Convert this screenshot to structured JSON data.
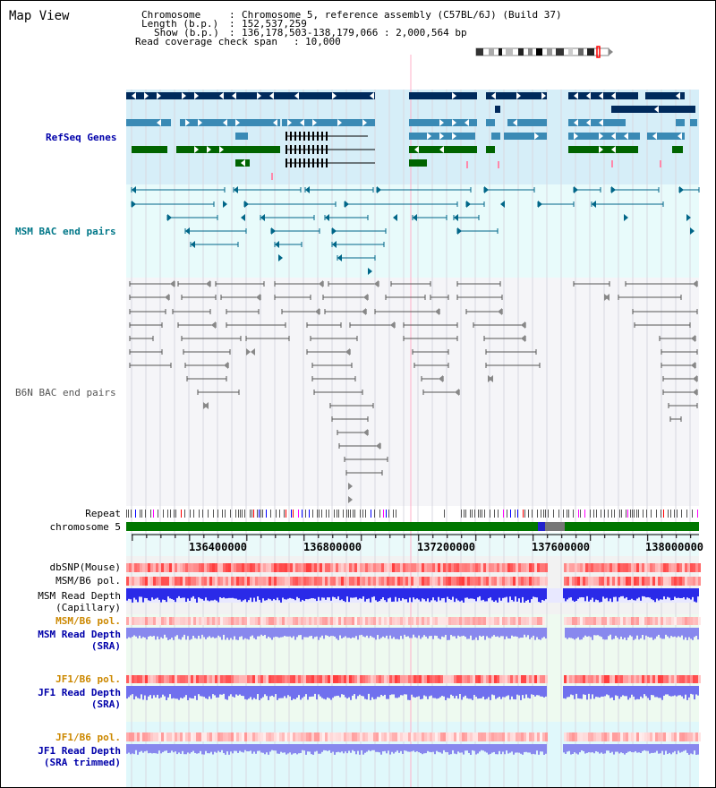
{
  "page": {
    "title": "Map View"
  },
  "header": {
    "rows": [
      {
        "key": "Chromosome",
        "value": "Chromosome 5, reference assembly (C57BL/6J) (Build 37)"
      },
      {
        "key": "Length (b.p.)",
        "value": "152,537,259"
      },
      {
        "key": "Show (b.p.)",
        "value": "136,178,503-138,179,066 : 2,000,564 bp"
      },
      {
        "key": "Read coverage check span",
        "value": "10,000"
      }
    ]
  },
  "tracks": {
    "refseq_label": "RefSeq Genes",
    "msm_bac_label": "MSM BAC end pairs",
    "b6n_bac_label": "B6N BAC end pairs",
    "repeat_label": "Repeat",
    "chromosome_label": "chromosome 5"
  },
  "axis": {
    "ticks": [
      "136400000",
      "136800000",
      "137200000",
      "137600000",
      "138000000"
    ],
    "range_start": 136178503,
    "range_end": 138179066
  },
  "data_tracks": [
    {
      "lines": [
        "dbSNP(Mouse)"
      ],
      "color": "#000000"
    },
    {
      "lines": [
        "MSM/B6 pol."
      ],
      "color": "#000000"
    },
    {
      "lines": [
        "MSM Read Depth",
        "(Capillary)"
      ],
      "color": "#000000"
    },
    {
      "lines": [
        "MSM/B6 pol."
      ],
      "color": "#cc8800"
    },
    {
      "lines": [
        "MSM Read Depth",
        "(SRA)"
      ],
      "color": "#000088"
    },
    {
      "lines": [
        "JF1/B6 pol."
      ],
      "color": "#cc8800"
    },
    {
      "lines": [
        "JF1 Read Depth",
        "(SRA)"
      ],
      "color": "#000088"
    },
    {
      "lines": [
        "JF1/B6 pol."
      ],
      "color": "#cc8800"
    },
    {
      "lines": [
        "JF1 Read Depth",
        "(SRA trimmed)"
      ],
      "color": "#000088"
    }
  ],
  "colors": {
    "gene_dark": "#002a5c",
    "gene_mid": "#3a8ab5",
    "gene_green": "#006400",
    "gene_pink": "#ff88aa",
    "msm_bac": "#006688",
    "b6n_bac": "#555555",
    "chrom_green": "#007700",
    "label_blue": "#0000aa",
    "label_teal": "#007788",
    "label_orange": "#cc8800"
  }
}
